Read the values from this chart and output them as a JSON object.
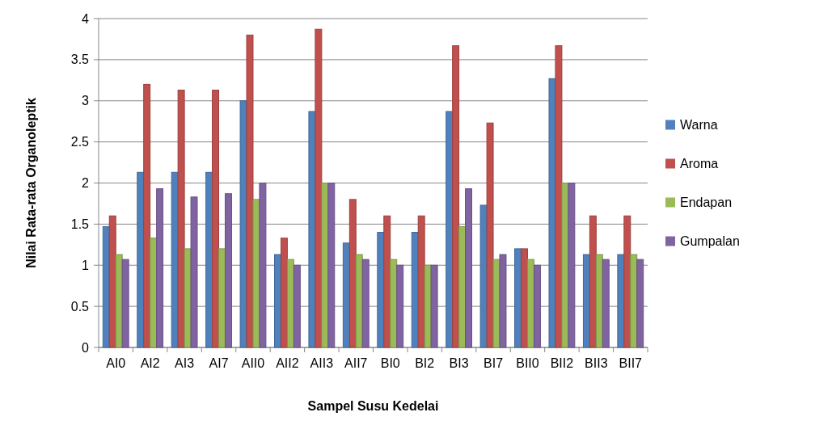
{
  "chart_data": {
    "type": "bar",
    "xlabel": "Sampel Susu Kedelai",
    "ylabel": "Nilai Rata-rata Organoleptik",
    "categories": [
      "AI0",
      "AI2",
      "AI3",
      "AI7",
      "AII0",
      "AII2",
      "AII3",
      "AII7",
      "BI0",
      "BI2",
      "BI3",
      "BI7",
      "BII0",
      "BII2",
      "BII3",
      "BII7"
    ],
    "series": [
      {
        "name": "Warna",
        "color": "#4f81bd",
        "values": [
          1.47,
          2.13,
          2.13,
          2.13,
          3,
          1.13,
          2.87,
          1.27,
          1.4,
          1.4,
          2.87,
          1.73,
          1.2,
          3.27,
          1.13,
          1.13
        ]
      },
      {
        "name": "Aroma",
        "color": "#c0504d",
        "values": [
          1.6,
          3.2,
          3.13,
          3.13,
          3.8,
          1.33,
          3.87,
          1.8,
          1.6,
          1.6,
          3.67,
          2.73,
          1.2,
          3.67,
          1.6,
          1.6
        ]
      },
      {
        "name": "Endapan",
        "color": "#9bbb59",
        "values": [
          1.13,
          1.33,
          1.2,
          1.2,
          1.8,
          1.07,
          2,
          1.13,
          1.07,
          1,
          1.47,
          1.07,
          1.07,
          2,
          1.13,
          1.13
        ]
      },
      {
        "name": "Gumpalan",
        "color": "#8064a2",
        "values": [
          1.07,
          1.93,
          1.83,
          1.87,
          2,
          1,
          2,
          1.07,
          1,
          1,
          1.93,
          1.13,
          1,
          2,
          1.07,
          1.07
        ]
      }
    ],
    "ylim": [
      0,
      4
    ],
    "yticks": [
      0,
      0.5,
      1,
      1.5,
      2,
      2.5,
      3,
      3.5,
      4
    ],
    "grid": "y",
    "legend": "right"
  }
}
